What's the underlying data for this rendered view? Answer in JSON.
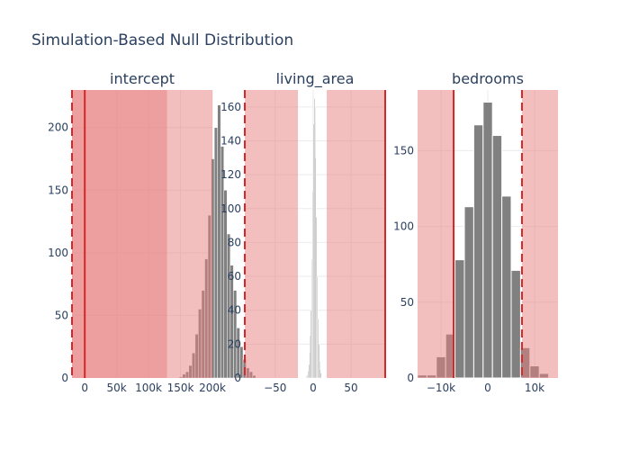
{
  "title": "Simulation-Based Null Distribution",
  "colors": {
    "background": "#ffffff",
    "grid": "#ebebeb",
    "text": "#2a3f5f",
    "bar": "#808080",
    "bar_outline": "#ffffff",
    "region": "#e87d7d",
    "region_opacity": 0.5,
    "line": "#d62728"
  },
  "chart_data": [
    {
      "type": "bar",
      "subtitle": "intercept",
      "xlim": [
        -20000,
        200000
      ],
      "ylim": [
        0,
        230
      ],
      "x_ticks": [
        {
          "v": 0,
          "label": "0"
        },
        {
          "v": 50000,
          "label": "50k"
        },
        {
          "v": 100000,
          "label": "100k"
        },
        {
          "v": 150000,
          "label": "150k"
        },
        {
          "v": 200000,
          "label": "200k"
        }
      ],
      "y_ticks": [
        {
          "v": 0,
          "label": "0"
        },
        {
          "v": 50,
          "label": "50"
        },
        {
          "v": 100,
          "label": "100"
        },
        {
          "v": 150,
          "label": "150"
        },
        {
          "v": 200,
          "label": "200"
        }
      ],
      "bins": {
        "start": 148000,
        "width": 5000,
        "counts": [
          1,
          3,
          5,
          10,
          20,
          35,
          55,
          70,
          95,
          130,
          175,
          200,
          218,
          185,
          150,
          115,
          90,
          70,
          40,
          25,
          15,
          8,
          5,
          2
        ]
      },
      "regions": [
        {
          "x0": -20000,
          "x1": 129000,
          "layers": 2
        },
        {
          "x0": 129000,
          "x1": 200000,
          "layers": 1
        }
      ],
      "vlines": [
        {
          "x": -20000,
          "style": "dashed"
        },
        {
          "x": 0,
          "style": "solid"
        }
      ],
      "grid": true
    },
    {
      "type": "bar",
      "subtitle": "living_area",
      "xlim": [
        -90,
        95
      ],
      "ylim": [
        0,
        170
      ],
      "x_ticks": [
        {
          "v": -50,
          "label": "−50"
        },
        {
          "v": 0,
          "label": "0"
        },
        {
          "v": 50,
          "label": "50"
        }
      ],
      "y_ticks": [
        {
          "v": 0,
          "label": "0"
        },
        {
          "v": 20,
          "label": "20"
        },
        {
          "v": 40,
          "label": "40"
        },
        {
          "v": 60,
          "label": "60"
        },
        {
          "v": 80,
          "label": "80"
        },
        {
          "v": 100,
          "label": "100"
        },
        {
          "v": 120,
          "label": "120"
        },
        {
          "v": 140,
          "label": "140"
        },
        {
          "v": 160,
          "label": "160"
        }
      ],
      "bins": {
        "start": -9,
        "width": 1,
        "counts": [
          1,
          2,
          4,
          8,
          15,
          25,
          40,
          70,
          110,
          150,
          165,
          160,
          130,
          95,
          60,
          35,
          20,
          10,
          5,
          3
        ]
      },
      "regions": [
        {
          "x0": -90,
          "x1": -20,
          "layers": 1
        },
        {
          "x0": 18,
          "x1": 95,
          "layers": 1
        }
      ],
      "vlines": [
        {
          "x": -90,
          "style": "dashed"
        },
        {
          "x": 95,
          "style": "solid"
        }
      ],
      "grid": true
    },
    {
      "type": "bar",
      "subtitle": "bedrooms",
      "xlim": [
        -15000,
        15000
      ],
      "ylim": [
        0,
        190
      ],
      "x_ticks": [
        {
          "v": -10000,
          "label": "−10k"
        },
        {
          "v": 0,
          "label": "0"
        },
        {
          "v": 10000,
          "label": "10k"
        }
      ],
      "y_ticks": [
        {
          "v": 0,
          "label": "0"
        },
        {
          "v": 50,
          "label": "50"
        },
        {
          "v": 100,
          "label": "100"
        },
        {
          "v": 150,
          "label": "150"
        }
      ],
      "bins": {
        "start": -15000,
        "width": 2000,
        "counts": [
          2,
          2,
          14,
          29,
          78,
          113,
          167,
          182,
          160,
          120,
          71,
          20,
          8,
          3
        ]
      },
      "regions": [
        {
          "x0": -15000,
          "x1": -7300,
          "layers": 1
        },
        {
          "x0": 7300,
          "x1": 15000,
          "layers": 1
        }
      ],
      "vlines": [
        {
          "x": -7300,
          "style": "solid"
        },
        {
          "x": 7300,
          "style": "dashed"
        }
      ],
      "grid": true
    }
  ]
}
